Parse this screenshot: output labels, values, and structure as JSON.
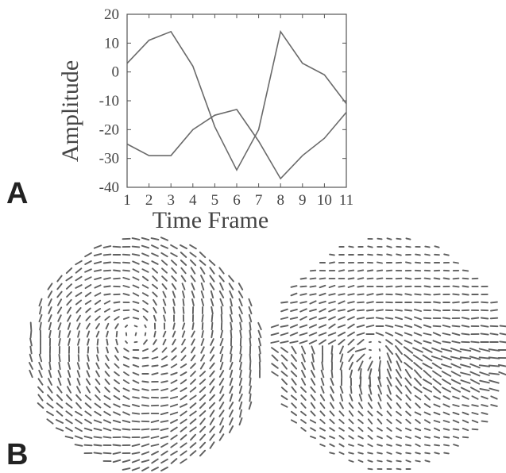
{
  "panels": {
    "a_label": "A",
    "b_label": "B"
  },
  "chart_data": {
    "type": "line",
    "title": "",
    "xlabel": "Time Frame",
    "ylabel": "Amplitude",
    "xlim": [
      1,
      11
    ],
    "ylim": [
      -40,
      20
    ],
    "xticks": [
      1,
      2,
      3,
      4,
      5,
      6,
      7,
      8,
      9,
      10,
      11
    ],
    "yticks": [
      20,
      10,
      0,
      -10,
      -20,
      -30,
      -40
    ],
    "grid": false,
    "x": [
      1,
      2,
      3,
      4,
      5,
      6,
      7,
      8,
      9,
      10,
      11
    ],
    "series": [
      {
        "values": [
          3,
          11,
          14,
          2,
          -19,
          -34,
          -20,
          14,
          3,
          -1,
          -11
        ],
        "color": "#6a6a6a"
      },
      {
        "values": [
          -25,
          -29,
          -29,
          -20,
          -15,
          -13,
          -24,
          -37,
          -29,
          -23,
          -14
        ],
        "color": "#6a6a6a"
      }
    ]
  },
  "vector_fields": [
    {
      "pattern": "vortex"
    },
    {
      "pattern": "wave"
    }
  ]
}
